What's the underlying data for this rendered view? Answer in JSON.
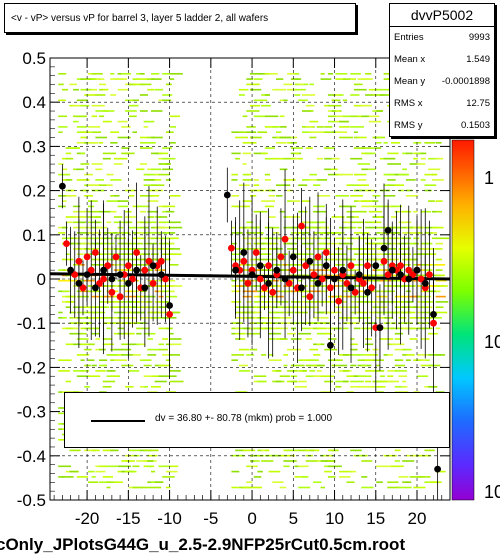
{
  "title": "<v - vP>       versus   vP for barrel 3, layer 5 ladder 2, all wafers",
  "stats": {
    "name": "dvvP5002",
    "rows": [
      {
        "label": "Entries",
        "value": "9993"
      },
      {
        "label": "Mean x",
        "value": "1.549"
      },
      {
        "label": "Mean y",
        "value": "-0.0001898"
      },
      {
        "label": "RMS x",
        "value": "12.75"
      },
      {
        "label": "RMS y",
        "value": "0.1503"
      }
    ]
  },
  "legend": {
    "text": "dv =   36.80 +- 80.78 (mkm) prob = 1.000"
  },
  "footer": "cOnly_JPlotsG44G_u_2.5-2.9NFP25rCut0.5cm.root",
  "palette_labels": [
    "1",
    "10",
    "10"
  ],
  "colors": {
    "red_points": "#ff0000",
    "black_points": "#000000",
    "fit_line": "#000000",
    "grid": "#000000"
  },
  "chart_data": {
    "type": "scatter",
    "xlim": [
      -24.5,
      24
    ],
    "ylim": [
      -0.5,
      0.5
    ],
    "x_ticks": [
      -20,
      -15,
      -10,
      -5,
      0,
      5,
      10,
      15,
      20
    ],
    "y_ticks": [
      0.5,
      0.4,
      0.3,
      0.2,
      0.1,
      0,
      -0.1,
      -0.2,
      -0.3,
      -0.4,
      -0.5
    ],
    "grid": true,
    "fit_line": {
      "x": [
        -24.5,
        24
      ],
      "y": [
        0.012,
        0.0
      ]
    },
    "series": [
      {
        "color": "red",
        "points": [
          {
            "x": -22.5,
            "y": 0.08
          },
          {
            "x": -21.5,
            "y": 0.01
          },
          {
            "x": -21,
            "y": 0.04
          },
          {
            "x": -20.5,
            "y": -0.02
          },
          {
            "x": -20,
            "y": 0.05
          },
          {
            "x": -19.5,
            "y": 0.02
          },
          {
            "x": -19,
            "y": 0.06
          },
          {
            "x": -18.5,
            "y": -0.01
          },
          {
            "x": -18,
            "y": 0.0
          },
          {
            "x": -17.5,
            "y": 0.03
          },
          {
            "x": -17,
            "y": -0.03
          },
          {
            "x": -16.5,
            "y": 0.05
          },
          {
            "x": -16,
            "y": -0.04
          },
          {
            "x": -15.5,
            "y": 0.01
          },
          {
            "x": -15,
            "y": 0.03
          },
          {
            "x": -14.5,
            "y": 0.0
          },
          {
            "x": -14,
            "y": 0.06
          },
          {
            "x": -13.5,
            "y": -0.02
          },
          {
            "x": -13,
            "y": 0.02
          },
          {
            "x": -12.5,
            "y": 0.04
          },
          {
            "x": -12,
            "y": -0.01
          },
          {
            "x": -11.5,
            "y": 0.03
          },
          {
            "x": -11,
            "y": 0.04
          },
          {
            "x": -10.5,
            "y": 0.0
          },
          {
            "x": -10,
            "y": -0.08
          },
          {
            "x": -2.5,
            "y": 0.07
          },
          {
            "x": -2,
            "y": 0.03
          },
          {
            "x": -1.5,
            "y": 0.02
          },
          {
            "x": -1,
            "y": 0.04
          },
          {
            "x": -0.5,
            "y": -0.01
          },
          {
            "x": 0,
            "y": 0.02
          },
          {
            "x": 0.5,
            "y": 0.06
          },
          {
            "x": 1,
            "y": 0.0
          },
          {
            "x": 1.5,
            "y": -0.02
          },
          {
            "x": 2,
            "y": 0.03
          },
          {
            "x": 2.5,
            "y": -0.03
          },
          {
            "x": 3,
            "y": 0.01
          },
          {
            "x": 3.5,
            "y": 0.05
          },
          {
            "x": 4,
            "y": 0.09
          },
          {
            "x": 4.5,
            "y": -0.01
          },
          {
            "x": 5,
            "y": 0.02
          },
          {
            "x": 5.5,
            "y": -0.02
          },
          {
            "x": 6,
            "y": 0.12
          },
          {
            "x": 6.5,
            "y": 0.03
          },
          {
            "x": 7,
            "y": -0.04
          },
          {
            "x": 7.5,
            "y": 0.01
          },
          {
            "x": 8,
            "y": 0.05
          },
          {
            "x": 8.5,
            "y": 0.0
          },
          {
            "x": 9,
            "y": 0.06
          },
          {
            "x": 9.5,
            "y": -0.02
          },
          {
            "x": 10,
            "y": 0.02
          },
          {
            "x": 10.5,
            "y": -0.05
          },
          {
            "x": 11,
            "y": 0.01
          },
          {
            "x": 11.5,
            "y": -0.01
          },
          {
            "x": 12,
            "y": 0.03
          },
          {
            "x": 12.5,
            "y": -0.03
          },
          {
            "x": 13,
            "y": 0.0
          },
          {
            "x": 13.5,
            "y": -0.01
          },
          {
            "x": 14,
            "y": 0.03
          },
          {
            "x": 14.5,
            "y": -0.02
          },
          {
            "x": 15,
            "y": -0.11
          },
          {
            "x": 15.5,
            "y": -0.11
          },
          {
            "x": 16,
            "y": 0.04
          },
          {
            "x": 16.5,
            "y": 0.01
          },
          {
            "x": 17,
            "y": 0.03
          },
          {
            "x": 17.5,
            "y": 0.02
          },
          {
            "x": 18,
            "y": 0.03
          },
          {
            "x": 18.5,
            "y": 0.0
          },
          {
            "x": 19,
            "y": 0.02
          },
          {
            "x": 19.5,
            "y": 0.01
          },
          {
            "x": 20,
            "y": 0.02
          },
          {
            "x": 20.5,
            "y": 0.0
          },
          {
            "x": 21,
            "y": -0.02
          },
          {
            "x": 21.5,
            "y": 0.01
          },
          {
            "x": 22,
            "y": -0.1
          }
        ]
      },
      {
        "color": "black",
        "points": [
          {
            "x": -23,
            "y": 0.21
          },
          {
            "x": -22,
            "y": 0.02
          },
          {
            "x": -21,
            "y": -0.01
          },
          {
            "x": -20,
            "y": 0.01
          },
          {
            "x": -19,
            "y": -0.02
          },
          {
            "x": -18,
            "y": 0.02
          },
          {
            "x": -17,
            "y": 0.0
          },
          {
            "x": -16,
            "y": 0.01
          },
          {
            "x": -15,
            "y": -0.01
          },
          {
            "x": -14,
            "y": 0.02
          },
          {
            "x": -13,
            "y": -0.02
          },
          {
            "x": -12,
            "y": 0.03
          },
          {
            "x": -11,
            "y": 0.01
          },
          {
            "x": -10,
            "y": -0.06
          },
          {
            "x": -3,
            "y": 0.19
          },
          {
            "x": -2,
            "y": 0.02
          },
          {
            "x": -1,
            "y": 0.06
          },
          {
            "x": 0,
            "y": 0.01
          },
          {
            "x": 1,
            "y": 0.03
          },
          {
            "x": 2,
            "y": -0.01
          },
          {
            "x": 3,
            "y": 0.02
          },
          {
            "x": 4,
            "y": 0.0
          },
          {
            "x": 5,
            "y": 0.05
          },
          {
            "x": 6,
            "y": -0.02
          },
          {
            "x": 7,
            "y": 0.04
          },
          {
            "x": 8,
            "y": -0.01
          },
          {
            "x": 9,
            "y": 0.03
          },
          {
            "x": 9.5,
            "y": -0.15
          },
          {
            "x": 10,
            "y": 0.0
          },
          {
            "x": 11,
            "y": 0.02
          },
          {
            "x": 12,
            "y": -0.02
          },
          {
            "x": 13,
            "y": 0.01
          },
          {
            "x": 14,
            "y": -0.03
          },
          {
            "x": 15,
            "y": 0.03
          },
          {
            "x": 15.5,
            "y": -0.11
          },
          {
            "x": 16,
            "y": 0.07
          },
          {
            "x": 16.5,
            "y": 0.11
          },
          {
            "x": 17,
            "y": 0.02
          },
          {
            "x": 18,
            "y": 0.01
          },
          {
            "x": 19,
            "y": 0.0
          },
          {
            "x": 20,
            "y": 0.02
          },
          {
            "x": 21,
            "y": -0.01
          },
          {
            "x": 22,
            "y": -0.08
          },
          {
            "x": 22.5,
            "y": -0.43
          }
        ]
      }
    ]
  }
}
